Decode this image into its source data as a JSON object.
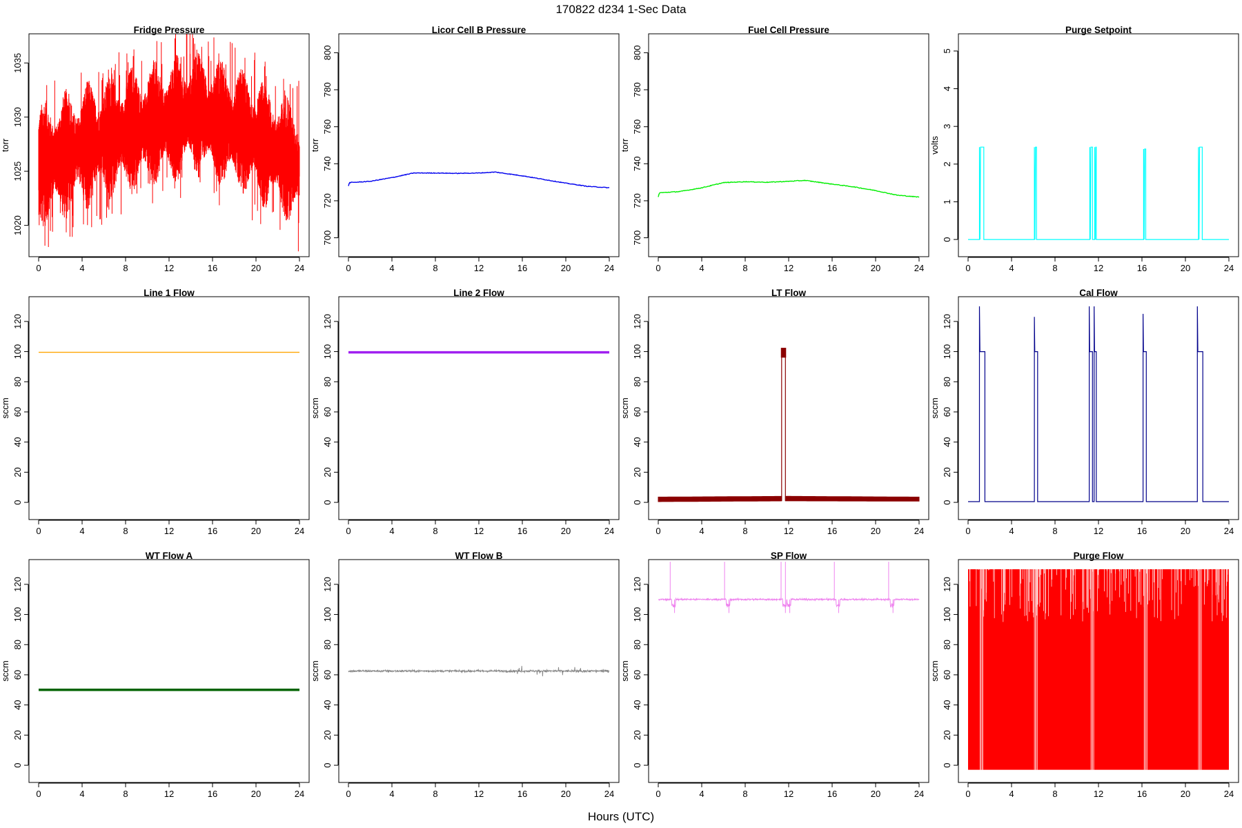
{
  "figure": {
    "title": "170822   d234   1-Sec Data",
    "xlabel": "Hours (UTC)"
  },
  "chart_data": [
    {
      "type": "line",
      "title": "Fridge Pressure",
      "ylabel": "torr",
      "color": "#ff0000",
      "xlim": [
        0,
        24
      ],
      "ylim": [
        1018,
        1036.8
      ],
      "xticks": [
        0,
        4,
        8,
        12,
        16,
        20,
        24
      ],
      "yticks": [
        1020,
        1025,
        1030,
        1035
      ],
      "render": "noise-band",
      "series": [
        {
          "x": [
            0,
            4,
            8,
            12,
            14.5,
            16,
            20,
            24
          ],
          "y": [
            1025.5,
            1027.2,
            1028.6,
            1029.6,
            1030.4,
            1029.8,
            1028.0,
            1025.5
          ]
        }
      ],
      "noise": 3.2,
      "peak": [
        15.0,
        1036.5
      ],
      "min": [
        0.9,
        1018.0
      ]
    },
    {
      "type": "line",
      "title": "Licor Cell B Pressure",
      "ylabel": "torr",
      "color": "#0000ee",
      "xlim": [
        0,
        24
      ],
      "ylim": [
        695,
        805
      ],
      "xticks": [
        0,
        4,
        8,
        12,
        16,
        20,
        24
      ],
      "yticks": [
        700,
        720,
        740,
        760,
        780,
        800
      ],
      "render": "line",
      "series": [
        {
          "x": [
            0,
            0.1,
            2,
            4,
            6,
            8,
            10,
            12,
            13.5,
            16,
            18,
            20,
            22,
            24
          ],
          "y": [
            728,
            729.8,
            730.5,
            732.5,
            735.0,
            735.0,
            734.8,
            735.0,
            735.5,
            733.5,
            731.5,
            729.5,
            727.8,
            727.0
          ]
        }
      ]
    },
    {
      "type": "line",
      "title": "Fuel Cell Pressure",
      "ylabel": "torr",
      "color": "#00ee00",
      "xlim": [
        0,
        24
      ],
      "ylim": [
        695,
        805
      ],
      "xticks": [
        0,
        4,
        8,
        12,
        16,
        20,
        24
      ],
      "yticks": [
        700,
        720,
        740,
        760,
        780,
        800
      ],
      "render": "line",
      "series": [
        {
          "x": [
            0,
            0.1,
            2,
            4,
            6,
            8,
            10,
            12,
            13.5,
            16,
            18,
            20,
            22,
            24
          ],
          "y": [
            722,
            724.3,
            725.0,
            727.0,
            729.8,
            730.3,
            730.0,
            730.5,
            731.0,
            729.0,
            727.5,
            725.5,
            723.0,
            722.0
          ]
        }
      ]
    },
    {
      "type": "line",
      "title": "Purge Setpoint",
      "ylabel": "volts",
      "color": "#00ffff",
      "xlim": [
        0,
        24
      ],
      "ylim": [
        -0.2,
        5.2
      ],
      "xticks": [
        0,
        4,
        8,
        12,
        16,
        20,
        24
      ],
      "yticks": [
        0,
        1,
        2,
        3,
        4,
        5
      ],
      "render": "pulses",
      "baseline": 0,
      "pulses": [
        [
          1.05,
          1.45,
          2.45
        ],
        [
          6.1,
          6.3,
          2.45
        ],
        [
          11.2,
          11.45,
          2.45
        ],
        [
          11.65,
          11.8,
          2.45
        ],
        [
          16.15,
          16.35,
          2.4
        ],
        [
          21.2,
          21.55,
          2.45
        ]
      ]
    },
    {
      "type": "line",
      "title": "Line 1 Flow",
      "ylabel": "sccm",
      "color": "#ffa500",
      "xlim": [
        0,
        24
      ],
      "ylim": [
        -5,
        130
      ],
      "xticks": [
        0,
        4,
        8,
        12,
        16,
        20,
        24
      ],
      "yticks": [
        0,
        20,
        40,
        60,
        80,
        100,
        120
      ],
      "render": "line",
      "series": [
        {
          "x": [
            0,
            24
          ],
          "y": [
            99.5,
            99.5
          ]
        }
      ]
    },
    {
      "type": "line",
      "title": "Line 2 Flow",
      "ylabel": "sccm",
      "color": "#a020f0",
      "xlim": [
        0,
        24
      ],
      "ylim": [
        -5,
        130
      ],
      "xticks": [
        0,
        4,
        8,
        12,
        16,
        20,
        24
      ],
      "yticks": [
        0,
        20,
        40,
        60,
        80,
        100,
        120
      ],
      "render": "thick-line",
      "series": [
        {
          "x": [
            0,
            24
          ],
          "y": [
            99.5,
            99.5
          ]
        }
      ]
    },
    {
      "type": "line",
      "title": "LT Flow",
      "ylabel": "sccm",
      "color": "#8b0000",
      "xlim": [
        0,
        24
      ],
      "ylim": [
        -5,
        130
      ],
      "xticks": [
        0,
        4,
        8,
        12,
        16,
        20,
        24
      ],
      "yticks": [
        0,
        20,
        40,
        60,
        80,
        100,
        120
      ],
      "render": "band-with-spike",
      "band": [
        [
          0,
          0.5,
          3.5
        ],
        [
          12,
          1.0,
          4.0
        ],
        [
          24,
          0.8,
          3.5
        ]
      ],
      "spike": [
        11.35,
        11.7,
        102
      ]
    },
    {
      "type": "line",
      "title": "Cal Flow",
      "ylabel": "sccm",
      "color": "#00008b",
      "xlim": [
        0,
        24
      ],
      "ylim": [
        -5,
        130
      ],
      "xticks": [
        0,
        4,
        8,
        12,
        16,
        20,
        24
      ],
      "yticks": [
        0,
        20,
        40,
        60,
        80,
        100,
        120
      ],
      "render": "pulses",
      "baseline": 0.5,
      "pulses": [
        [
          1.05,
          1.55,
          100,
          130
        ],
        [
          6.1,
          6.4,
          100,
          123
        ],
        [
          11.15,
          11.45,
          100,
          130
        ],
        [
          11.6,
          11.8,
          100,
          130
        ],
        [
          16.1,
          16.4,
          100,
          125
        ],
        [
          21.1,
          21.6,
          100,
          130
        ]
      ]
    },
    {
      "type": "line",
      "title": "WT Flow A",
      "ylabel": "sccm",
      "color": "#006400",
      "xlim": [
        0,
        24
      ],
      "ylim": [
        -5,
        130
      ],
      "xticks": [
        0,
        4,
        8,
        12,
        16,
        20,
        24
      ],
      "yticks": [
        0,
        20,
        40,
        60,
        80,
        100,
        120
      ],
      "render": "thick-line",
      "series": [
        {
          "x": [
            0,
            24
          ],
          "y": [
            50,
            50
          ]
        }
      ]
    },
    {
      "type": "line",
      "title": "WT Flow B",
      "ylabel": "sccm",
      "color": "#888888",
      "xlim": [
        0,
        24
      ],
      "ylim": [
        -5,
        130
      ],
      "xticks": [
        0,
        4,
        8,
        12,
        16,
        20,
        24
      ],
      "yticks": [
        0,
        20,
        40,
        60,
        80,
        100,
        120
      ],
      "render": "noisy-line",
      "series": [
        {
          "x": [
            0,
            12,
            24
          ],
          "y": [
            62.5,
            62.5,
            62.5
          ]
        }
      ],
      "noise": 1.2
    },
    {
      "type": "line",
      "title": "SP Flow",
      "ylabel": "sccm",
      "color": "#ee82ee",
      "xlim": [
        0,
        24
      ],
      "ylim": [
        -5,
        130
      ],
      "xticks": [
        0,
        4,
        8,
        12,
        16,
        20,
        24
      ],
      "yticks": [
        0,
        20,
        40,
        60,
        80,
        100,
        120
      ],
      "render": "noisy-line",
      "series": [
        {
          "x": [
            0,
            24
          ],
          "y": [
            110,
            110
          ]
        }
      ],
      "noise": 1.0,
      "events": [
        1.1,
        6.1,
        11.3,
        11.7,
        16.2,
        21.2
      ]
    },
    {
      "type": "line",
      "title": "Purge Flow",
      "ylabel": "sccm",
      "color": "#ff0000",
      "xlim": [
        0,
        24
      ],
      "ylim": [
        -5,
        130
      ],
      "xticks": [
        0,
        4,
        8,
        12,
        16,
        20,
        24
      ],
      "yticks": [
        0,
        20,
        40,
        60,
        80,
        100,
        120
      ],
      "render": "full-fill",
      "range": [
        -3,
        130
      ],
      "gaps": [
        1.1,
        6.1,
        11.3,
        16.2,
        21.2
      ]
    }
  ]
}
